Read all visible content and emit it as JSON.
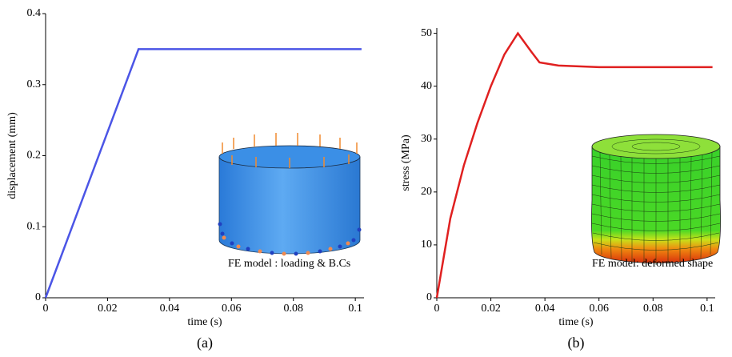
{
  "chart_data": [
    {
      "type": "line",
      "x": [
        0,
        0.03,
        0.102
      ],
      "values": [
        0,
        0.35,
        0.35
      ],
      "color": "#4b55e6",
      "xlim": [
        0,
        0.1028
      ],
      "xticks": [
        0,
        0.02,
        0.04,
        0.06,
        0.08,
        0.1
      ],
      "ylim": [
        0,
        0.4
      ],
      "yticks": [
        0,
        0.1,
        0.2,
        0.3,
        0.4
      ],
      "xlabel": "time (s)",
      "ylabel": "displacement (mm)",
      "annotation": "FE model : loading & B.Cs",
      "caption": "(a)"
    },
    {
      "type": "line",
      "x": [
        0,
        0.005,
        0.01,
        0.015,
        0.02,
        0.025,
        0.03,
        0.035,
        0.038,
        0.045,
        0.06,
        0.08,
        0.102
      ],
      "values": [
        0,
        15,
        25,
        33,
        40,
        46,
        50,
        46.5,
        44.5,
        43.9,
        43.6,
        43.6,
        43.6
      ],
      "color": "#e02020",
      "xlim": [
        0,
        0.103
      ],
      "xticks": [
        0,
        0.02,
        0.04,
        0.06,
        0.08,
        0.1
      ],
      "ylim": [
        0,
        51
      ],
      "yticks": [
        0,
        10,
        20,
        30,
        40,
        50
      ],
      "xlabel": "time (s)",
      "ylabel": "stress (MPa)",
      "annotation": "FE model: deformed shape",
      "caption": "(b)"
    }
  ]
}
